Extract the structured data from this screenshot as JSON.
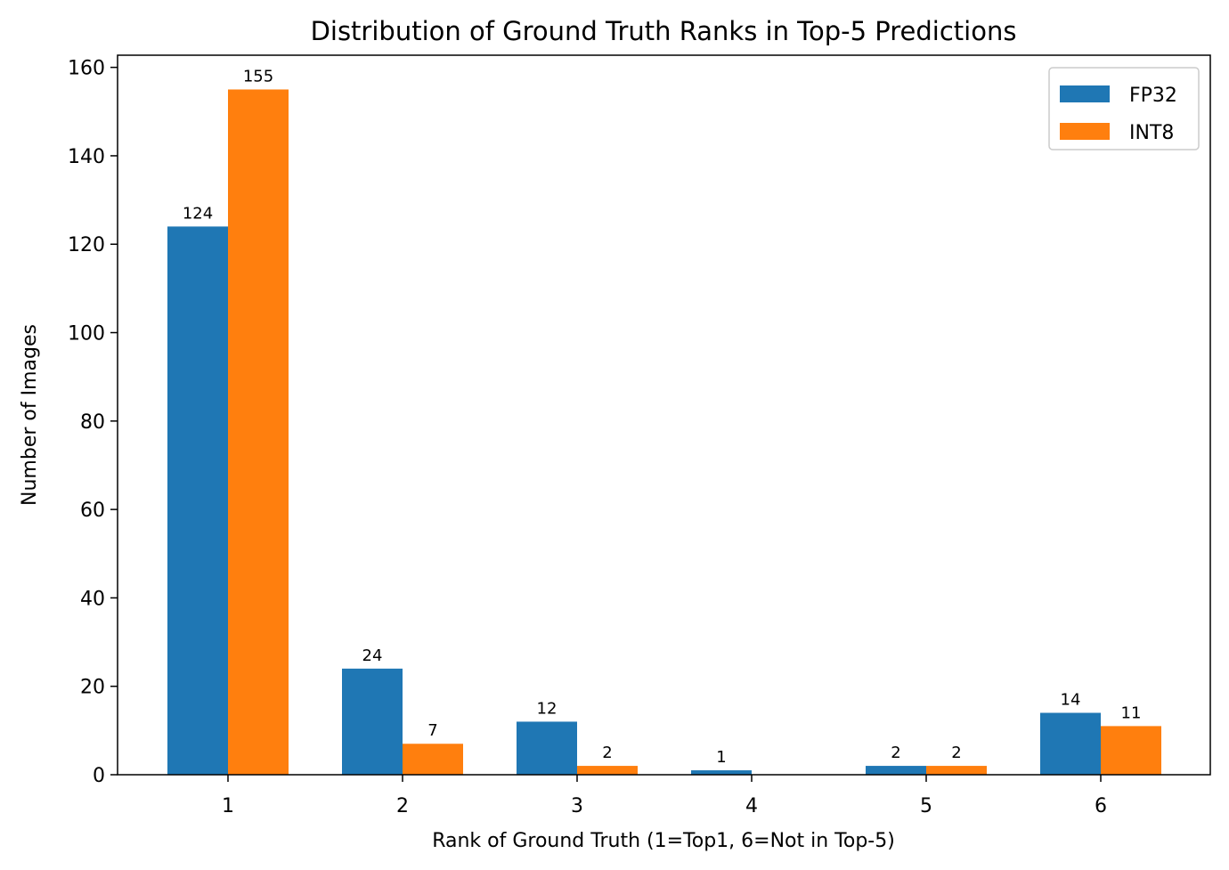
{
  "chart_data": {
    "type": "bar",
    "title": "Distribution of Ground Truth Ranks in Top-5 Predictions",
    "xlabel": "Rank of Ground Truth (1=Top1, 6=Not in Top-5)",
    "ylabel": "Number of Images",
    "categories": [
      "1",
      "2",
      "3",
      "4",
      "5",
      "6"
    ],
    "series": [
      {
        "name": "FP32",
        "color": "#1f77b4",
        "values": [
          124,
          24,
          12,
          1,
          2,
          14
        ]
      },
      {
        "name": "INT8",
        "color": "#ff7f0e",
        "values": [
          155,
          7,
          2,
          0,
          2,
          11
        ]
      }
    ],
    "ylim": [
      0,
      162.75
    ],
    "yticks": [
      0,
      20,
      40,
      60,
      80,
      100,
      120,
      140,
      160
    ],
    "grid": false,
    "legend_position": "top-right",
    "show_data_labels": true
  }
}
